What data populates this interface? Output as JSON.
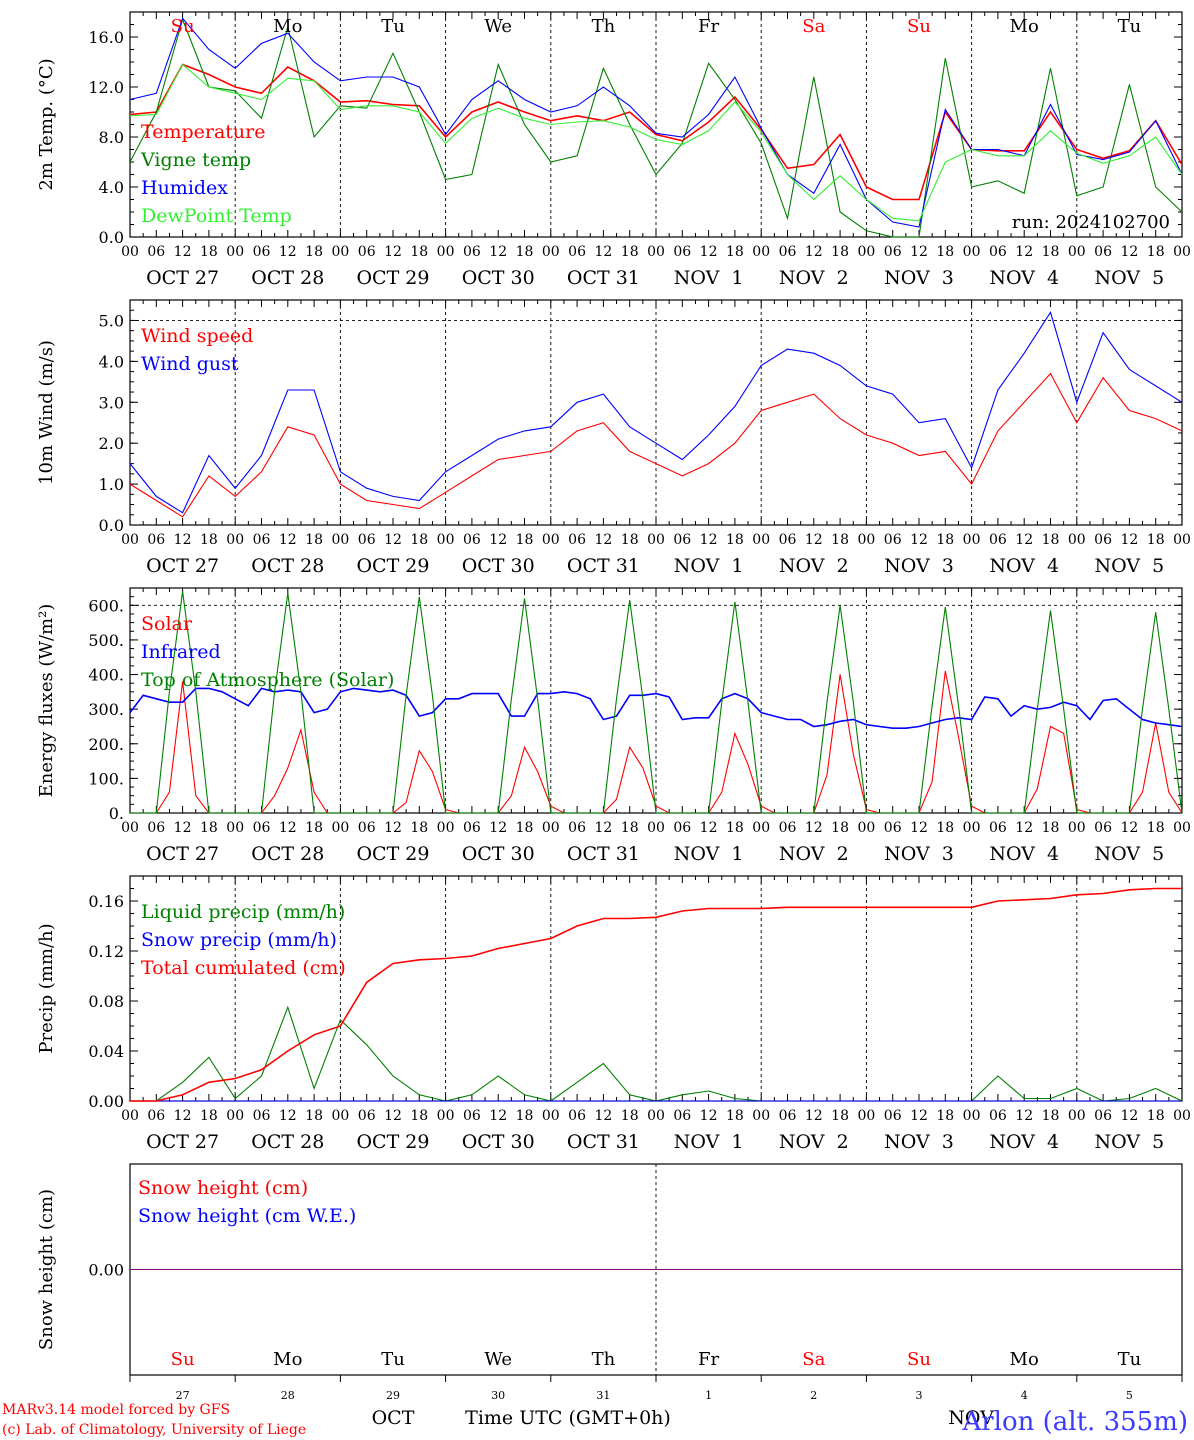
{
  "run_label": "run: 2024102700",
  "colors": {
    "red": "#ff0000",
    "green": "#008000",
    "blue": "#0000ff",
    "lightgreen": "#33ee33",
    "purple": "#800080",
    "black": "#000000"
  },
  "x_axis": {
    "hour_labels": [
      "00",
      "06",
      "12",
      "18"
    ],
    "final_hour_label": "00",
    "date_labels": [
      "OCT 27",
      "OCT 28",
      "OCT 29",
      "OCT 30",
      "OCT 31",
      "NOV  1",
      "NOV  2",
      "NOV  3",
      "NOV  4",
      "NOV  5"
    ],
    "weekday_labels": [
      "Su",
      "Mo",
      "Tu",
      "We",
      "Th",
      "Fr",
      "Sa",
      "Su",
      "Mo",
      "Tu"
    ],
    "weekend_flags": [
      true,
      false,
      false,
      false,
      false,
      false,
      true,
      true,
      false,
      false
    ],
    "day_numbers": [
      "27",
      "28",
      "29",
      "30",
      "31",
      "1",
      "2",
      "3",
      "4",
      "5"
    ],
    "month_left": "OCT",
    "month_right": "NOV",
    "axis_title": "Time UTC (GMT+0h)"
  },
  "footer": {
    "line1": "MARv3.14 model forced by GFS",
    "line2": "(c) Lab. of Climatology, University of Liege",
    "station": "Arlon (alt. 355m)"
  },
  "chart_data": [
    {
      "type": "line",
      "ylabel": "2m Temp. (°C)",
      "ylim": [
        0,
        18
      ],
      "yticks": [
        0,
        4,
        8,
        12,
        16
      ],
      "ytick_labels": [
        "0.0",
        "4.0",
        "8.0",
        "12.0",
        "16.0"
      ],
      "x": [
        0,
        6,
        12,
        18,
        24,
        30,
        36,
        42,
        48,
        54,
        60,
        66,
        72,
        78,
        84,
        90,
        96,
        102,
        108,
        114,
        120,
        126,
        132,
        138,
        144,
        150,
        156,
        162,
        168,
        174,
        180,
        186,
        192,
        198,
        204,
        210,
        216,
        222,
        228,
        234,
        240
      ],
      "series": [
        {
          "name": "Temperature",
          "color": "#ff0000",
          "values": [
            9.8,
            10.0,
            13.8,
            13.0,
            12.0,
            11.5,
            13.6,
            12.5,
            10.8,
            10.9,
            10.6,
            10.5,
            8.0,
            10.0,
            10.8,
            10.0,
            9.3,
            9.7,
            9.3,
            10.0,
            8.2,
            7.7,
            9.2,
            11.2,
            8.6,
            5.5,
            5.8,
            8.2,
            4.0,
            3.0,
            3.0,
            10.0,
            7.0,
            6.9,
            6.9,
            10.0,
            7.0,
            6.3,
            6.9,
            9.3,
            5.8
          ]
        },
        {
          "name": "Vigne temp",
          "color": "#008000",
          "values": [
            6.0,
            10.0,
            17.4,
            12.0,
            11.7,
            9.5,
            16.8,
            8.0,
            10.5,
            10.3,
            14.7,
            10.0,
            4.6,
            5.0,
            13.8,
            9.0,
            6.0,
            6.5,
            13.5,
            9.0,
            5.0,
            7.5,
            13.9,
            11.0,
            7.5,
            1.5,
            12.8,
            2.0,
            0.5,
            0.0,
            0.0,
            14.3,
            4.0,
            4.5,
            3.5,
            13.5,
            3.3,
            4.0,
            12.2,
            4.0,
            2.0
          ]
        },
        {
          "name": "Humidex",
          "color": "#0000ff",
          "values": [
            11.0,
            11.5,
            17.5,
            15.0,
            13.5,
            15.5,
            16.3,
            14.0,
            12.5,
            12.8,
            12.8,
            12.0,
            8.2,
            11.0,
            12.5,
            11.0,
            10.0,
            10.5,
            12.0,
            10.5,
            8.3,
            8.0,
            9.8,
            12.8,
            8.7,
            5.0,
            3.5,
            7.4,
            3.0,
            1.2,
            0.8,
            10.2,
            7.0,
            7.0,
            6.5,
            10.6,
            6.6,
            6.2,
            6.8,
            9.3,
            5.0
          ]
        },
        {
          "name": "DewPoint Temp",
          "color": "#33ee33",
          "values": [
            9.7,
            9.8,
            13.8,
            12.0,
            11.5,
            11.0,
            12.7,
            12.5,
            10.2,
            10.5,
            10.5,
            10.0,
            7.5,
            9.5,
            10.3,
            9.5,
            9.0,
            9.2,
            9.3,
            8.8,
            7.8,
            7.4,
            8.5,
            10.8,
            8.4,
            5.0,
            3.0,
            4.9,
            3.0,
            1.5,
            1.3,
            6.0,
            7.0,
            6.5,
            6.5,
            8.5,
            6.7,
            5.9,
            6.5,
            8.0,
            5.0
          ]
        }
      ]
    },
    {
      "type": "line",
      "ylabel": "10m Wind (m/s)",
      "ylim": [
        0,
        5.5
      ],
      "yticks": [
        0,
        1,
        2,
        3,
        4,
        5
      ],
      "ytick_labels": [
        "0.0",
        "1.0",
        "2.0",
        "3.0",
        "4.0",
        "5.0"
      ],
      "x": [
        0,
        6,
        12,
        18,
        24,
        30,
        36,
        42,
        48,
        54,
        60,
        66,
        72,
        78,
        84,
        90,
        96,
        102,
        108,
        114,
        120,
        126,
        132,
        138,
        144,
        150,
        156,
        162,
        168,
        174,
        180,
        186,
        192,
        198,
        204,
        210,
        216,
        222,
        228,
        234,
        240
      ],
      "series": [
        {
          "name": "Wind speed",
          "color": "#ff0000",
          "values": [
            1.0,
            0.6,
            0.2,
            1.2,
            0.7,
            1.3,
            2.4,
            2.2,
            1.0,
            0.6,
            0.5,
            0.4,
            0.8,
            1.2,
            1.6,
            1.7,
            1.8,
            2.3,
            2.5,
            1.8,
            1.5,
            1.2,
            1.5,
            2.0,
            2.8,
            3.0,
            3.2,
            2.6,
            2.2,
            2.0,
            1.7,
            1.8,
            1.0,
            2.3,
            3.0,
            3.7,
            2.5,
            3.6,
            2.8,
            2.6,
            2.3
          ]
        },
        {
          "name": "Wind gust",
          "color": "#0000ff",
          "values": [
            1.5,
            0.7,
            0.3,
            1.7,
            0.9,
            1.7,
            3.3,
            3.3,
            1.3,
            0.9,
            0.7,
            0.6,
            1.3,
            1.7,
            2.1,
            2.3,
            2.4,
            3.0,
            3.2,
            2.4,
            2.0,
            1.6,
            2.2,
            2.9,
            3.9,
            4.3,
            4.2,
            3.9,
            3.4,
            3.2,
            2.5,
            2.6,
            1.4,
            3.3,
            4.2,
            5.2,
            3.0,
            4.7,
            3.8,
            3.4,
            3.0
          ]
        }
      ]
    },
    {
      "type": "line",
      "ylabel": "Energy fluxes (W/m²)",
      "ylim": [
        0,
        650
      ],
      "yticks": [
        0,
        100,
        200,
        300,
        400,
        500,
        600
      ],
      "ytick_labels": [
        "0.",
        "100.",
        "200.",
        "300.",
        "400.",
        "500.",
        "600."
      ],
      "x": [
        0,
        3,
        6,
        9,
        12,
        15,
        18,
        21,
        24,
        27,
        30,
        33,
        36,
        39,
        42,
        45,
        48,
        51,
        54,
        57,
        60,
        63,
        66,
        69,
        72,
        75,
        78,
        81,
        84,
        87,
        90,
        93,
        96,
        99,
        102,
        105,
        108,
        111,
        114,
        117,
        120,
        123,
        126,
        129,
        132,
        135,
        138,
        141,
        144,
        147,
        150,
        153,
        156,
        159,
        162,
        165,
        168,
        171,
        174,
        177,
        180,
        183,
        186,
        189,
        192,
        195,
        198,
        201,
        204,
        207,
        210,
        213,
        216,
        219,
        222,
        225,
        228,
        231,
        234,
        237,
        240
      ],
      "series": [
        {
          "name": "Solar",
          "color": "#ff0000",
          "values": [
            0,
            0,
            0,
            60,
            380,
            50,
            0,
            0,
            0,
            0,
            0,
            50,
            130,
            240,
            60,
            0,
            0,
            0,
            0,
            0,
            0,
            30,
            180,
            120,
            10,
            0,
            0,
            0,
            0,
            50,
            190,
            120,
            20,
            0,
            0,
            0,
            0,
            40,
            190,
            130,
            20,
            0,
            0,
            0,
            0,
            60,
            230,
            140,
            20,
            0,
            0,
            0,
            0,
            110,
            400,
            170,
            10,
            0,
            0,
            0,
            0,
            90,
            410,
            220,
            20,
            0,
            0,
            0,
            0,
            70,
            250,
            230,
            10,
            0,
            0,
            0,
            0,
            60,
            260,
            60,
            0
          ]
        },
        {
          "name": "Infrared",
          "color": "#0000ff",
          "values": [
            290,
            340,
            330,
            320,
            320,
            360,
            360,
            350,
            330,
            310,
            360,
            350,
            355,
            350,
            290,
            300,
            350,
            360,
            355,
            350,
            355,
            340,
            280,
            290,
            330,
            330,
            345,
            345,
            345,
            280,
            280,
            345,
            345,
            350,
            345,
            330,
            270,
            280,
            340,
            340,
            345,
            335,
            270,
            275,
            275,
            330,
            345,
            330,
            290,
            280,
            270,
            270,
            250,
            255,
            265,
            270,
            255,
            250,
            245,
            245,
            250,
            260,
            270,
            275,
            270,
            335,
            330,
            280,
            310,
            300,
            305,
            320,
            310,
            270,
            325,
            330,
            300,
            270,
            260,
            255,
            250
          ]
        },
        {
          "name": "Top of Atmosphere (Solar)",
          "color": "#008000",
          "values": [
            0,
            0,
            0,
            350,
            640,
            350,
            0,
            0,
            0,
            0,
            0,
            350,
            635,
            350,
            0,
            0,
            0,
            0,
            0,
            0,
            0,
            340,
            625,
            340,
            0,
            0,
            0,
            0,
            0,
            330,
            620,
            330,
            0,
            0,
            0,
            0,
            0,
            330,
            615,
            330,
            0,
            0,
            0,
            0,
            0,
            320,
            610,
            320,
            0,
            0,
            0,
            0,
            0,
            320,
            600,
            320,
            0,
            0,
            0,
            0,
            0,
            310,
            595,
            310,
            0,
            0,
            0,
            0,
            0,
            300,
            585,
            300,
            0,
            0,
            0,
            0,
            0,
            300,
            580,
            300,
            0
          ]
        }
      ]
    },
    {
      "type": "line",
      "ylabel": "Precip (mm/h)",
      "ylim": [
        0,
        0.18
      ],
      "yticks": [
        0,
        0.04,
        0.08,
        0.12,
        0.16
      ],
      "ytick_labels": [
        "0.00",
        "0.04",
        "0.08",
        "0.12",
        "0.16"
      ],
      "x": [
        0,
        6,
        12,
        18,
        24,
        30,
        36,
        42,
        48,
        54,
        60,
        66,
        72,
        78,
        84,
        90,
        96,
        102,
        108,
        114,
        120,
        126,
        132,
        138,
        144,
        150,
        156,
        162,
        168,
        174,
        180,
        186,
        192,
        198,
        204,
        210,
        216,
        222,
        228,
        234,
        240
      ],
      "series": [
        {
          "name": "Liquid precip (mm/h)",
          "color": "#008000",
          "values": [
            0,
            0,
            0.015,
            0.035,
            0.002,
            0.02,
            0.075,
            0.01,
            0.065,
            0.045,
            0.02,
            0.005,
            0,
            0.005,
            0.02,
            0.005,
            0,
            0.015,
            0.03,
            0.005,
            0,
            0.005,
            0.008,
            0.002,
            0,
            0,
            0,
            0,
            0,
            0,
            0,
            0,
            0,
            0.02,
            0.002,
            0.002,
            0.01,
            0,
            0.002,
            0.01,
            0
          ]
        },
        {
          "name": "Snow precip (mm/h)",
          "color": "#0000ff",
          "values": [
            0,
            0,
            0,
            0,
            0,
            0,
            0,
            0,
            0,
            0,
            0,
            0,
            0,
            0,
            0,
            0,
            0,
            0,
            0,
            0,
            0,
            0,
            0,
            0,
            0,
            0,
            0,
            0,
            0,
            0,
            0,
            0,
            0,
            0,
            0,
            0,
            0,
            0,
            0,
            0,
            0
          ]
        },
        {
          "name": "Total cumulated (cm)",
          "color": "#ff0000",
          "values": [
            0,
            0,
            0.005,
            0.015,
            0.018,
            0.025,
            0.04,
            0.053,
            0.06,
            0.095,
            0.11,
            0.113,
            0.114,
            0.116,
            0.122,
            0.126,
            0.13,
            0.14,
            0.146,
            0.146,
            0.147,
            0.152,
            0.154,
            0.154,
            0.154,
            0.155,
            0.155,
            0.155,
            0.155,
            0.155,
            0.155,
            0.155,
            0.155,
            0.16,
            0.161,
            0.162,
            0.165,
            0.166,
            0.169,
            0.17,
            0.17
          ]
        }
      ]
    },
    {
      "type": "line",
      "ylabel": "Snow height (cm)",
      "ylim": [
        -1,
        1
      ],
      "yticks": [
        0
      ],
      "ytick_labels": [
        "0.00"
      ],
      "x": [
        0,
        240
      ],
      "series": [
        {
          "name": "Snow height (cm)",
          "color": "#ff0000",
          "values": [
            0,
            0
          ]
        },
        {
          "name": "Snow height (cm W.E.)",
          "color": "#0000ff",
          "values": [
            0,
            0
          ]
        }
      ]
    }
  ]
}
